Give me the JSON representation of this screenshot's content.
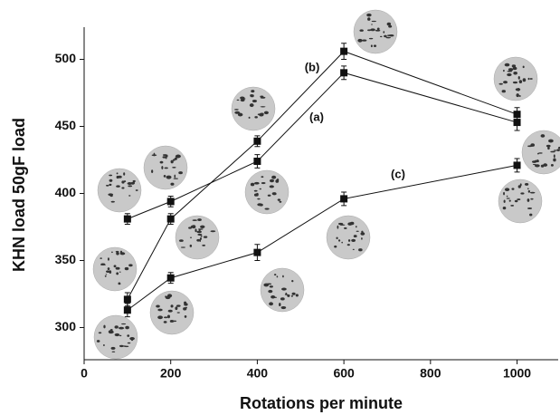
{
  "chart_data": {
    "type": "line",
    "x_label": "Rotations per minute",
    "y_label": "KHN load 50gF load",
    "x": [
      100,
      200,
      400,
      600,
      1000
    ],
    "series": [
      {
        "name": "(a)",
        "color": "#111111",
        "values": [
          381,
          394,
          424,
          490,
          453
        ],
        "errors": [
          4,
          4,
          5,
          5,
          6
        ]
      },
      {
        "name": "(b)",
        "color": "#111111",
        "values": [
          321,
          381,
          439,
          506,
          459
        ],
        "errors": [
          5,
          4,
          4,
          6,
          5
        ]
      },
      {
        "name": "(c)",
        "color": "#111111",
        "values": [
          313,
          337,
          356,
          396,
          421
        ],
        "errors": [
          5,
          4,
          6,
          5,
          5
        ]
      }
    ],
    "xlim": [
      0,
      1095
    ],
    "ylim": [
      276,
      524
    ],
    "xticks": [
      0,
      200,
      400,
      600,
      800,
      1000
    ],
    "yticks": [
      300,
      350,
      400,
      450,
      500
    ],
    "grid": false
  }
}
